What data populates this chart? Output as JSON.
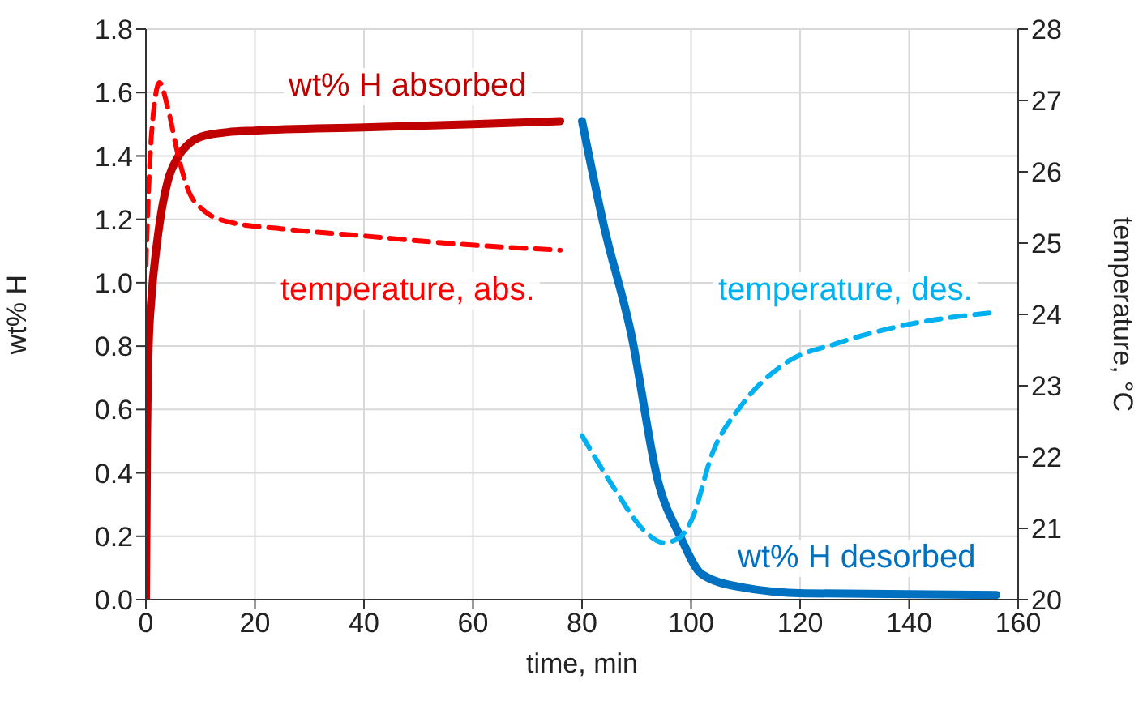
{
  "chart_data": {
    "type": "line",
    "xlabel": "time, min",
    "ylabel": "wt% H",
    "y2label": "temperature, °C",
    "xlim": [
      0,
      160
    ],
    "xticks": [
      0,
      20,
      40,
      60,
      80,
      100,
      120,
      140,
      160
    ],
    "ylim": [
      0,
      1.8
    ],
    "yticks": [
      {
        "value": 0,
        "label": "0.0"
      },
      0.2,
      0.4,
      0.6,
      0.8,
      {
        "value": 1,
        "label": "1.0"
      },
      1.2,
      1.4,
      1.6,
      1.8
    ],
    "y2lim": [
      20,
      28
    ],
    "y2ticks": [
      20,
      21,
      22,
      23,
      24,
      25,
      26,
      27,
      28
    ],
    "grid": true,
    "legend": false,
    "marker": "none",
    "series": [
      {
        "name": "wt% H absorbed",
        "color": "#c00000",
        "line_style": "solid",
        "x": [
          0,
          0.2,
          0.5,
          1,
          2,
          3,
          4,
          6,
          8,
          10,
          15,
          20,
          40,
          60,
          76
        ],
        "values": [
          0,
          0.5,
          0.8,
          0.95,
          1.12,
          1.24,
          1.32,
          1.4,
          1.44,
          1.46,
          1.475,
          1.48,
          1.49,
          1.5,
          1.51
        ]
      },
      {
        "name": "temperature, abs.",
        "color": "#ff0000",
        "line_style": "dashed",
        "axis": "y2",
        "x": [
          0,
          1,
          2.5,
          4,
          6,
          8,
          10,
          15,
          25,
          40,
          55,
          76
        ],
        "values": [
          24.7,
          26.5,
          27.25,
          26.9,
          26.2,
          25.7,
          25.5,
          25.3,
          25.2,
          25.1,
          25.0,
          24.9
        ]
      },
      {
        "name": "wt% H desorbed",
        "color": "#0070c0",
        "line_style": "solid",
        "x": [
          80,
          84,
          89,
          94,
          98,
          102,
          109,
          121,
          156
        ],
        "values": [
          1.51,
          1.18,
          0.84,
          0.37,
          0.2,
          0.08,
          0.04,
          0.02,
          0.015
        ]
      },
      {
        "name": "temperature, des.",
        "color": "#00b0f0",
        "line_style": "dashed",
        "axis": "y2",
        "x": [
          80,
          86,
          91,
          95,
          97.5,
          100,
          104,
          109,
          117,
          127,
          138,
          156
        ],
        "values": [
          22.3,
          21.55,
          21.0,
          20.8,
          20.85,
          21.1,
          22.07,
          22.7,
          23.3,
          23.6,
          23.83,
          24.03
        ]
      }
    ]
  }
}
